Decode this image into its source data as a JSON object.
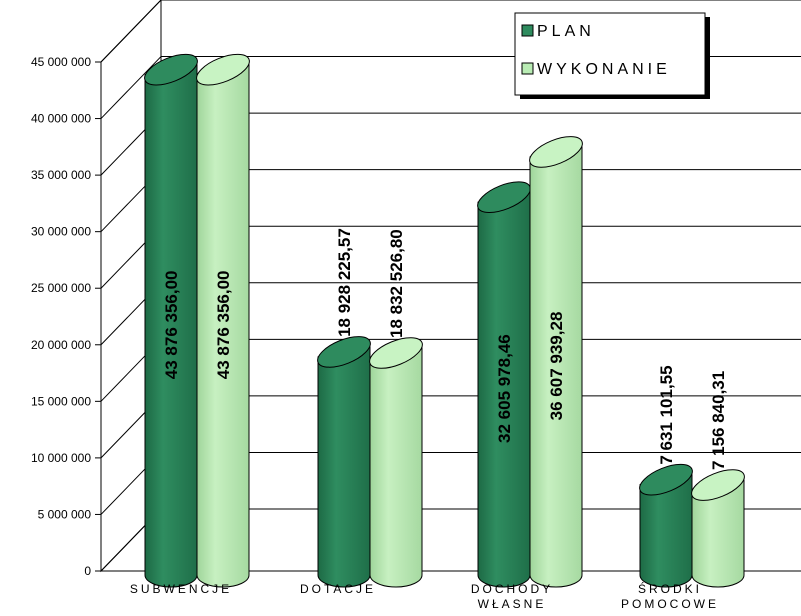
{
  "chart_data": {
    "type": "bar",
    "categories": [
      "SUBWENCJE",
      "DOTACJE",
      "DOCHODY WŁASNE",
      "ŚRODKI POMOCOWE"
    ],
    "category_lines": [
      [
        "SUBWENCJE"
      ],
      [
        "DOTACJE"
      ],
      [
        "DOCHODY",
        "WŁASNE"
      ],
      [
        "ŚRODKI",
        "POMOCOWE"
      ]
    ],
    "series": [
      {
        "name": "PLAN",
        "values": [
          43876356.0,
          18928225.57,
          32605978.46,
          7631101.55
        ],
        "labels": [
          "43 876 356,00",
          "18 928 225,57",
          "32 605 978,46",
          "7 631 101,55"
        ],
        "color": "#2e8b5e"
      },
      {
        "name": "WYKONANIE",
        "values": [
          43876356.0,
          18832526.8,
          36607939.28,
          7156840.31
        ],
        "labels": [
          "43 876 356,00",
          "18 832 526,80",
          "36 607 939,28",
          "7 156 840,31"
        ],
        "color": "#b9ecb4"
      }
    ],
    "y_ticks": [
      0,
      5000000,
      10000000,
      15000000,
      20000000,
      25000000,
      30000000,
      35000000,
      40000000,
      45000000
    ],
    "y_tick_labels": [
      "0",
      "5 000 000",
      "10 000 000",
      "15 000 000",
      "20 000 000",
      "25 000 000",
      "30 000 000",
      "35 000 000",
      "40 000 000",
      "45 000 000"
    ],
    "ylim": [
      0,
      45000000
    ],
    "grid": true,
    "legend_position": "top-right",
    "style": "3d-cylinder"
  }
}
